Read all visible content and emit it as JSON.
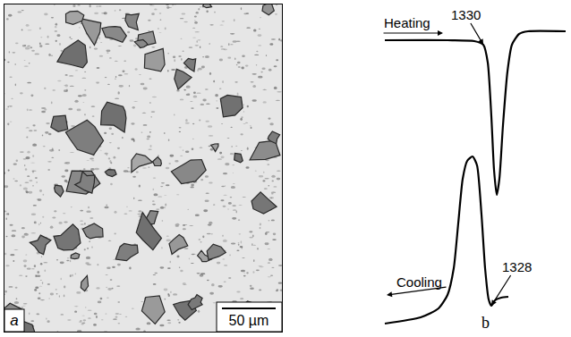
{
  "panel_a": {
    "letter": "a",
    "scale_bar": "50 µm"
  },
  "chart_data": {
    "type": "line",
    "letter": "b",
    "series": [
      {
        "color": "#000000",
        "x": [
          430,
          500,
          530,
          540,
          545,
          549,
          552,
          555,
          558,
          562,
          567,
          572,
          580,
          590,
          632
        ],
        "values": [
          332,
          332,
          331,
          327,
          307,
          247,
          187,
          159,
          177,
          237,
          297,
          327,
          339,
          342,
          342
        ]
      },
      {
        "color": "#000000",
        "x": [
          430,
          470,
          490,
          500,
          507,
          512,
          517,
          522,
          528,
          533,
          538,
          542,
          546,
          549,
          553,
          560,
          568
        ],
        "values": [
          15,
          22,
          32,
          47,
          77,
          127,
          177,
          197,
          202,
          192,
          137,
          77,
          42,
          35,
          41,
          44,
          45
        ]
      }
    ],
    "annotations": [
      {
        "text": "Heating",
        "x": 455,
        "y": 352,
        "arrow": "right"
      },
      {
        "text": "1330",
        "x": 540,
        "y": 327,
        "arrow": "point"
      },
      {
        "text": "1328",
        "x": 549,
        "y": 35,
        "arrow": "point"
      },
      {
        "text": "Cooling",
        "x": 468,
        "y": 62,
        "arrow": "left"
      }
    ],
    "xlim": [
      330,
      638
    ],
    "ylim": [
      0,
      377
    ],
    "tick_labels": false,
    "grid": false
  }
}
